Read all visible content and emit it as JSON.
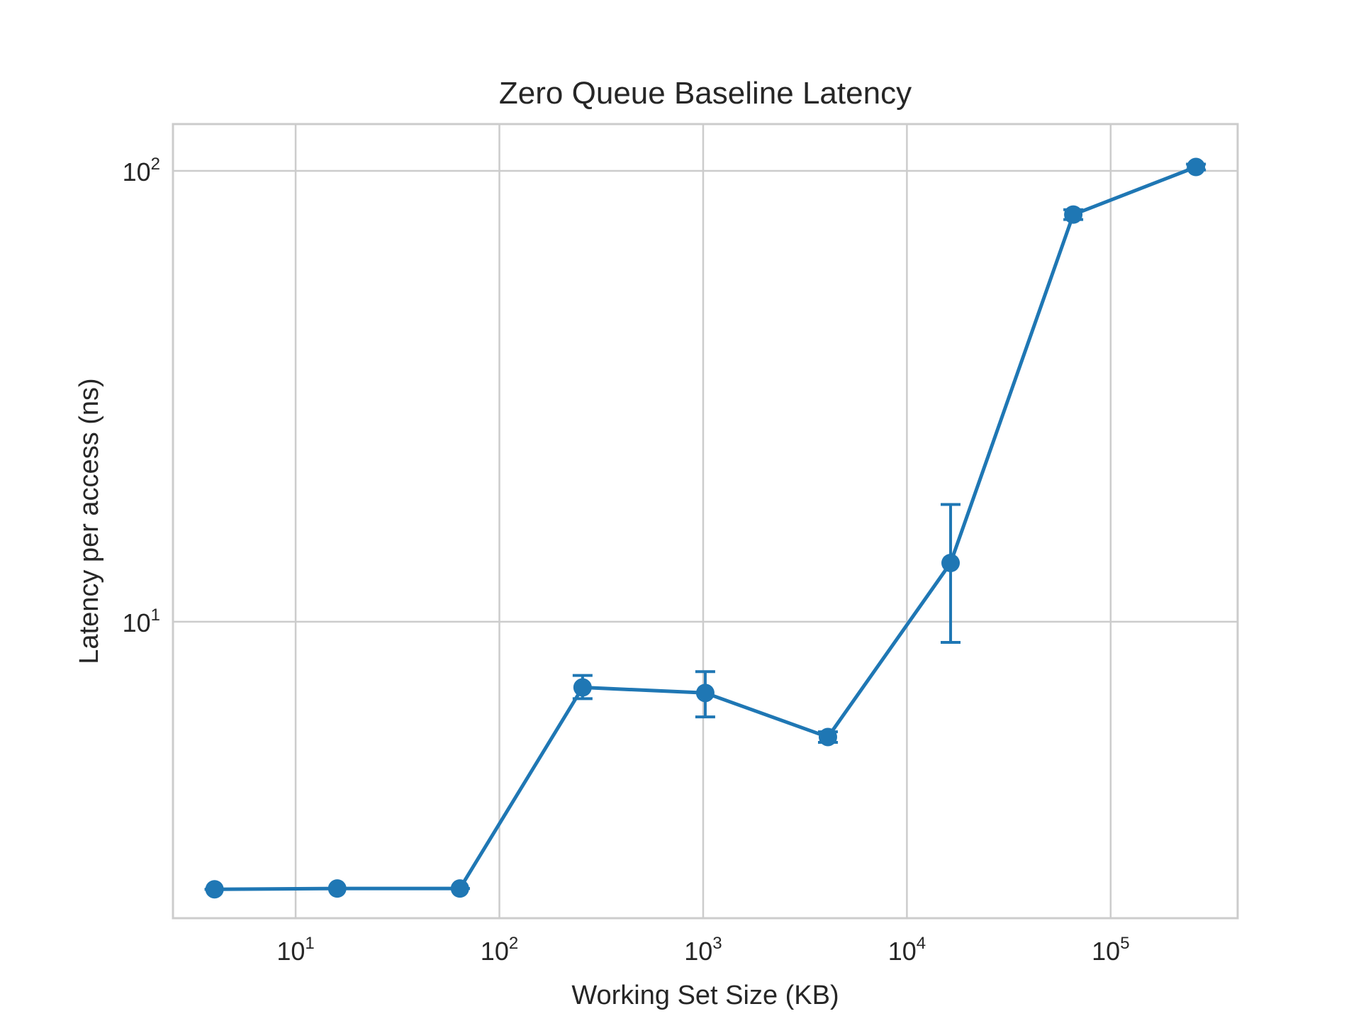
{
  "chart_data": {
    "type": "line",
    "title": "Zero Queue Baseline Latency",
    "xlabel": "Working Set Size (KB)",
    "ylabel": "Latency per access (ns)",
    "xscale": "log",
    "yscale": "log",
    "xlim": [
      2.5,
      420000
    ],
    "ylim": [
      2.2,
      127
    ],
    "grid": true,
    "legend": "none",
    "color": "#1f77b4",
    "x_ticks": [
      {
        "base": "10",
        "exp": "1",
        "value": 10
      },
      {
        "base": "10",
        "exp": "2",
        "value": 100
      },
      {
        "base": "10",
        "exp": "3",
        "value": 1000
      },
      {
        "base": "10",
        "exp": "4",
        "value": 10000
      },
      {
        "base": "10",
        "exp": "5",
        "value": 100000
      }
    ],
    "y_ticks": [
      {
        "base": "10",
        "exp": "1",
        "value": 10
      },
      {
        "base": "10",
        "exp": "2",
        "value": 100
      }
    ],
    "series": [
      {
        "x": [
          4,
          16,
          64,
          256,
          1024,
          4096,
          16384,
          65536,
          262144
        ],
        "y": [
          2.55,
          2.56,
          2.56,
          7.15,
          6.95,
          5.55,
          13.5,
          80,
          102
        ],
        "err_low": [
          2.55,
          2.56,
          2.56,
          6.75,
          6.15,
          5.4,
          9.0,
          78,
          100.5
        ],
        "err_high": [
          2.55,
          2.56,
          2.56,
          7.6,
          7.75,
          5.7,
          18.2,
          82,
          103.5
        ]
      }
    ]
  }
}
